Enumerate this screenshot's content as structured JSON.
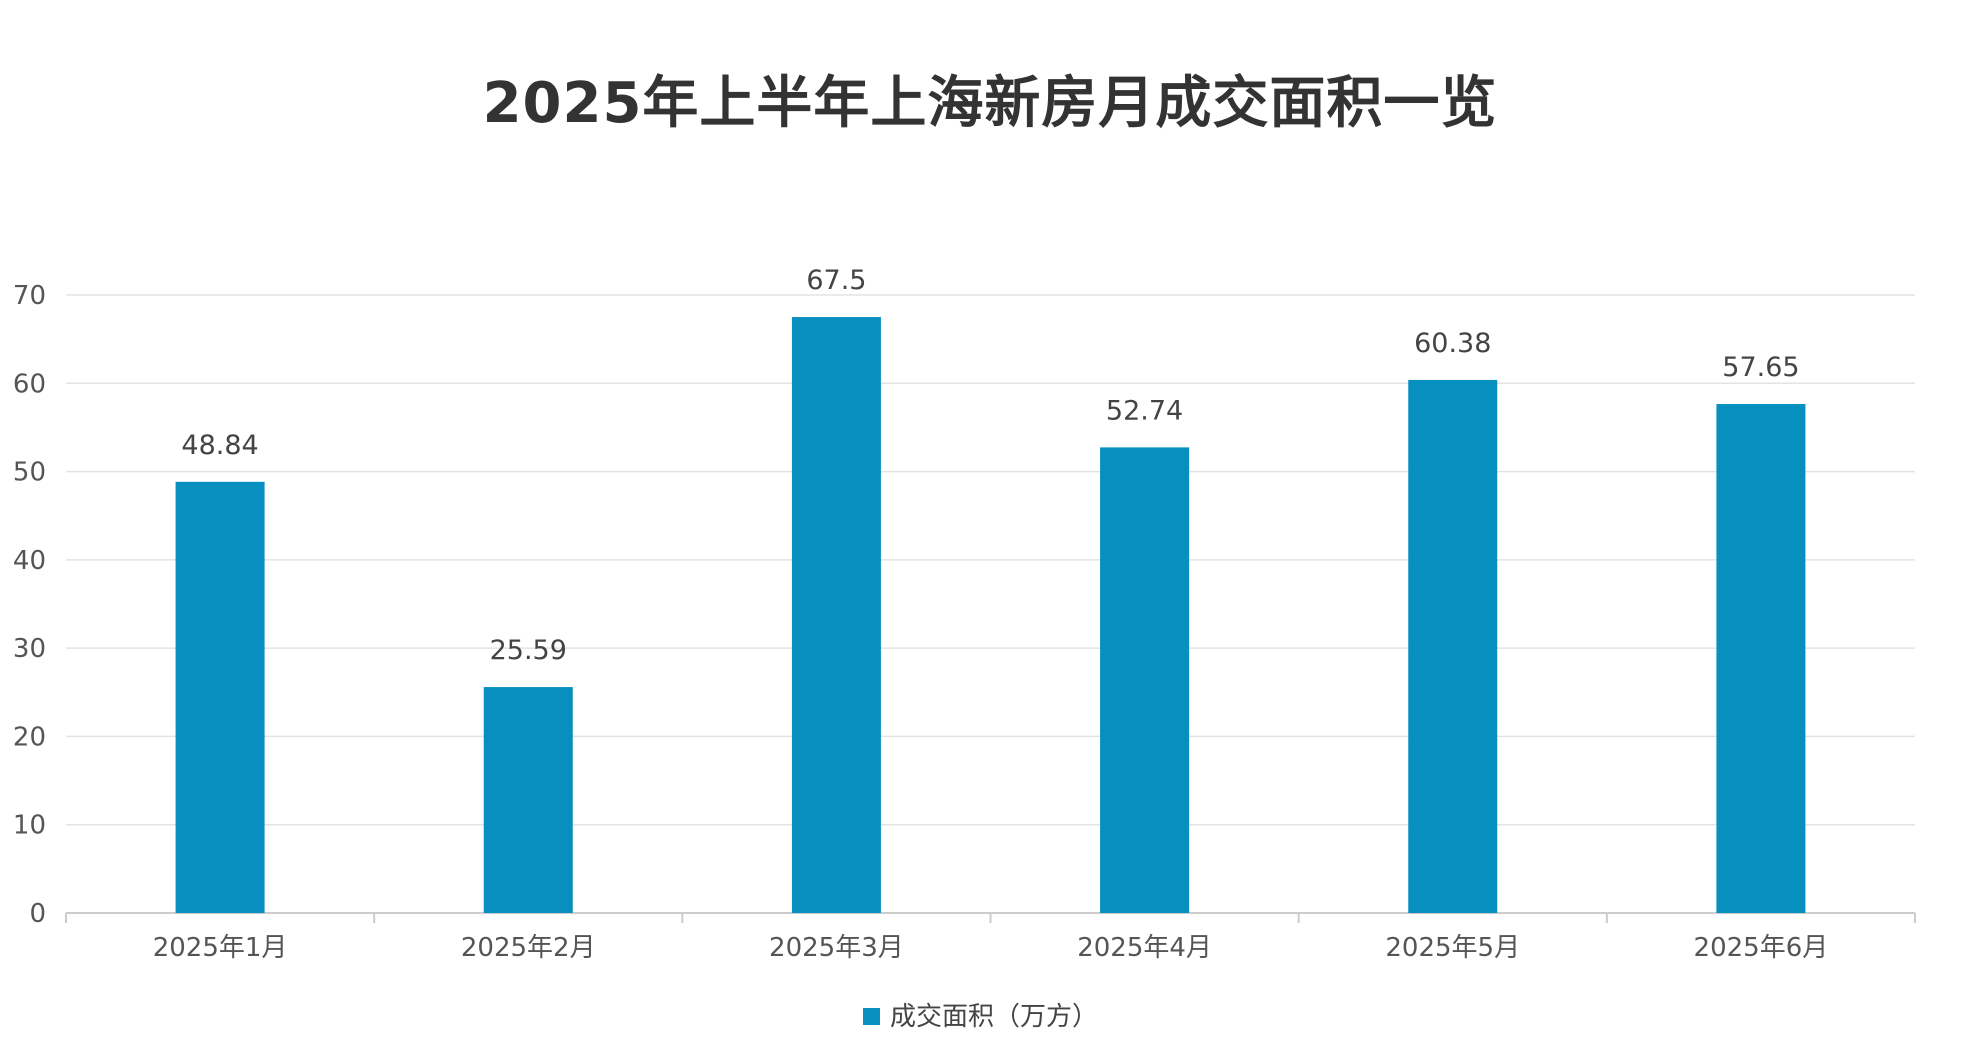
{
  "chart_data": {
    "type": "bar",
    "title": "2025年上半年上海新房月成交面积一览",
    "categories": [
      "2025年1月",
      "2025年2月",
      "2025年3月",
      "2025年4月",
      "2025年5月",
      "2025年6月"
    ],
    "series": [
      {
        "name": "成交面积（万方）",
        "values": [
          48.84,
          25.59,
          67.5,
          52.74,
          60.38,
          57.65
        ],
        "color": "#078FC0"
      }
    ],
    "data_labels": [
      "48.84",
      "25.59",
      "67.5",
      "52.74",
      "60.38",
      "57.65"
    ],
    "yticks": [
      "0",
      "10",
      "20",
      "30",
      "40",
      "50",
      "60",
      "70"
    ],
    "ylim": [
      0,
      70
    ],
    "grid": true,
    "legend_position": "bottom-center",
    "xlabel": "",
    "ylabel": ""
  }
}
